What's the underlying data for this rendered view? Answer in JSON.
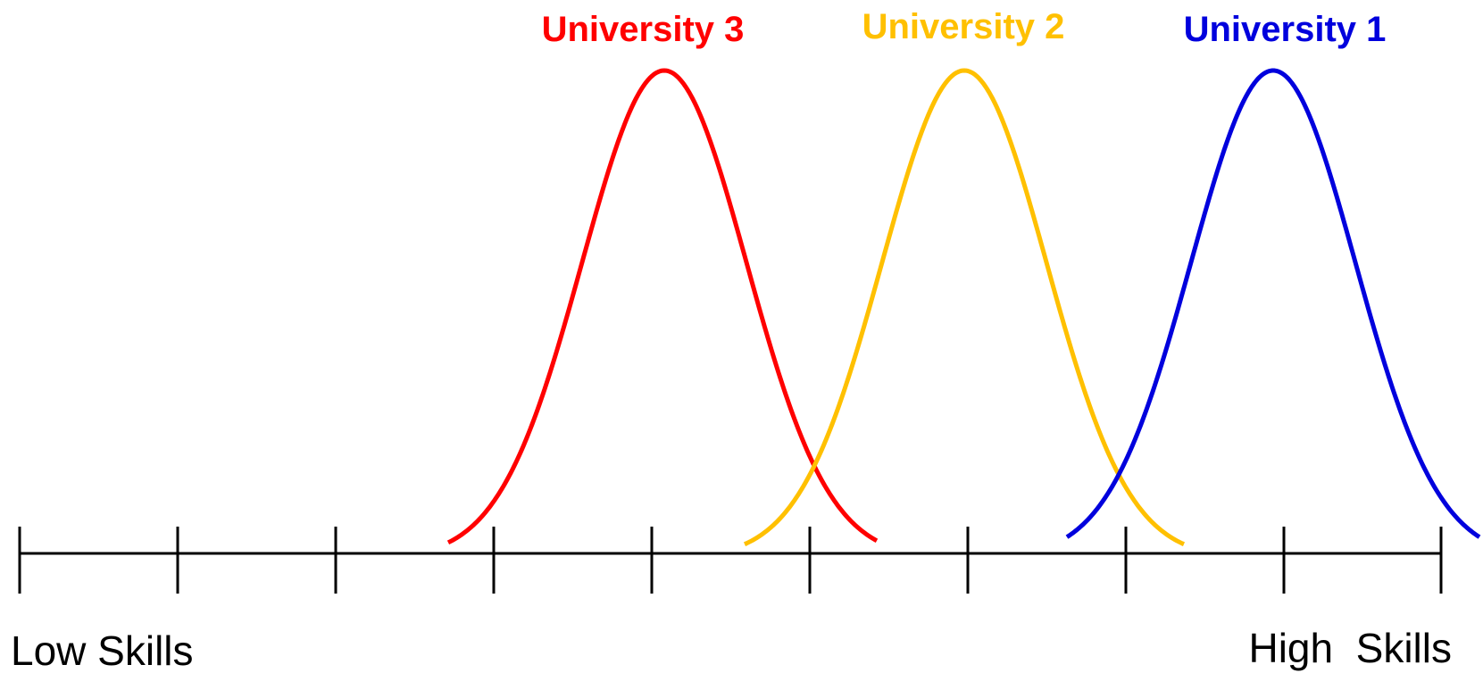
{
  "axis": {
    "low_label": "Low Skills",
    "high_label": "High  Skills"
  },
  "curves": [
    {
      "label": "University 3",
      "color": "#ff0000"
    },
    {
      "label": "University 2",
      "color": "#ffc000"
    },
    {
      "label": "University 1",
      "color": "#0000dd"
    }
  ]
}
